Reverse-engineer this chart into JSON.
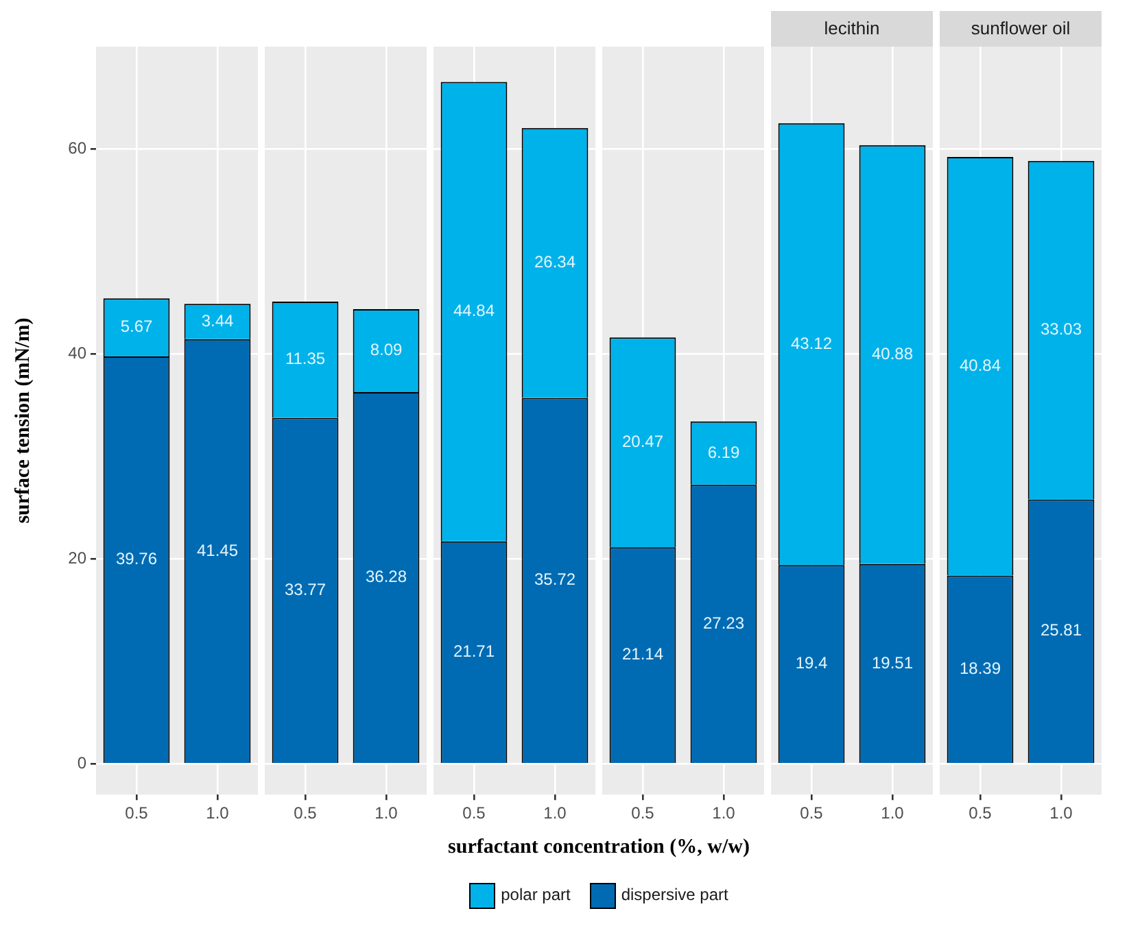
{
  "chart_data": [
    {
      "type": "bar",
      "ylabel": "surface tension (mN/m)",
      "legend": "bottom",
      "stacked": true,
      "categories": [
        "0.5",
        "1.0"
      ],
      "series": [
        {
          "name": "dispersive part",
          "color": "#006bb3",
          "values": [
            39.76,
            41.45
          ]
        },
        {
          "name": "polar part",
          "color": "#00b2ea",
          "values": [
            5.67,
            3.44
          ]
        }
      ],
      "ylim": [
        -3,
        70
      ],
      "yticks": [
        0,
        20,
        40,
        60
      ],
      "grid": true,
      "data_labels": true
    },
    {
      "type": "bar",
      "stacked": true,
      "categories": [
        "0.5",
        "1.0"
      ],
      "series": [
        {
          "color": "#006bb3",
          "values": [
            33.77,
            36.28
          ]
        },
        {
          "color": "#00b2ea",
          "values": [
            11.35,
            8.09
          ]
        }
      ],
      "ylim": [
        -3,
        70
      ],
      "yticks": [
        0,
        20,
        40,
        60
      ],
      "grid": true,
      "data_labels": true,
      "tick_labels": "x"
    },
    {
      "type": "bar",
      "xlabel": "surfactant concentration (%, w/w)",
      "stacked": true,
      "categories": [
        "0.5",
        "1.0"
      ],
      "series": [
        {
          "color": "#006bb3",
          "values": [
            21.71,
            35.72
          ]
        },
        {
          "color": "#00b2ea",
          "values": [
            44.84,
            26.34
          ]
        }
      ],
      "ylim": [
        -3,
        70
      ],
      "yticks": [
        0,
        20,
        40,
        60
      ],
      "grid": true,
      "data_labels": true,
      "tick_labels": "x"
    },
    {
      "type": "bar",
      "stacked": true,
      "categories": [
        "0.5",
        "1.0"
      ],
      "series": [
        {
          "color": "#006bb3",
          "values": [
            21.14,
            27.23
          ]
        },
        {
          "color": "#00b2ea",
          "values": [
            20.47,
            6.19
          ]
        }
      ],
      "ylim": [
        -3,
        70
      ],
      "yticks": [
        0,
        20,
        40,
        60
      ],
      "grid": true,
      "data_labels": true,
      "tick_labels": "x"
    },
    {
      "type": "bar",
      "title": "lecithin",
      "stacked": true,
      "categories": [
        "0.5",
        "1.0"
      ],
      "series": [
        {
          "color": "#006bb3",
          "values": [
            19.4,
            19.51
          ]
        },
        {
          "color": "#00b2ea",
          "values": [
            43.12,
            40.88
          ]
        }
      ],
      "ylim": [
        -3,
        70
      ],
      "yticks": [
        0,
        20,
        40,
        60
      ],
      "grid": true,
      "data_labels": true,
      "tick_labels": "x"
    },
    {
      "type": "bar",
      "title": "sunflower oil",
      "stacked": true,
      "categories": [
        "0.5",
        "1.0"
      ],
      "series": [
        {
          "color": "#006bb3",
          "values": [
            18.39,
            25.81
          ]
        },
        {
          "color": "#00b2ea",
          "values": [
            40.84,
            33.03
          ]
        }
      ],
      "ylim": [
        -3,
        70
      ],
      "yticks": [
        0,
        20,
        40,
        60
      ],
      "grid": true,
      "data_labels": true,
      "tick_labels": "x"
    }
  ]
}
